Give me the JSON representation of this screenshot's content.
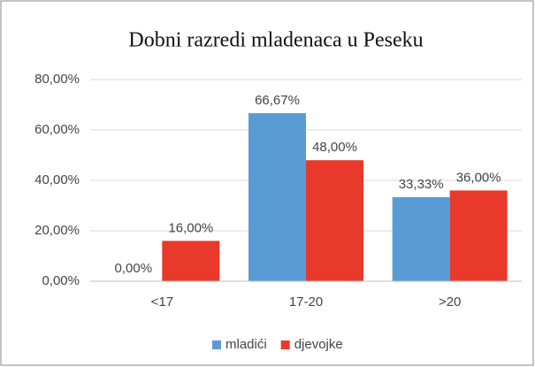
{
  "chart_data": {
    "type": "bar",
    "title": "Dobni razredi mladenaca u Peseku",
    "categories": [
      "<17",
      "17-20",
      ">20"
    ],
    "series": [
      {
        "name": "mladići",
        "color": "#5b9bd5",
        "values": [
          0,
          66.67,
          33.33
        ],
        "value_labels": [
          "0,00%",
          "66,67%",
          "33,33%"
        ]
      },
      {
        "name": "djevojke",
        "color": "#e8392a",
        "values": [
          16,
          48,
          36
        ],
        "value_labels": [
          "16,00%",
          "48,00%",
          "36,00%"
        ]
      }
    ],
    "ylim": [
      0,
      80
    ],
    "yticks": [
      {
        "value": 0,
        "label": "0,00%"
      },
      {
        "value": 20,
        "label": "20,00%"
      },
      {
        "value": 40,
        "label": "40,00%"
      },
      {
        "value": 60,
        "label": "60,00%"
      },
      {
        "value": 80,
        "label": "80,00%"
      }
    ],
    "grid": true,
    "legend": "bottom"
  }
}
